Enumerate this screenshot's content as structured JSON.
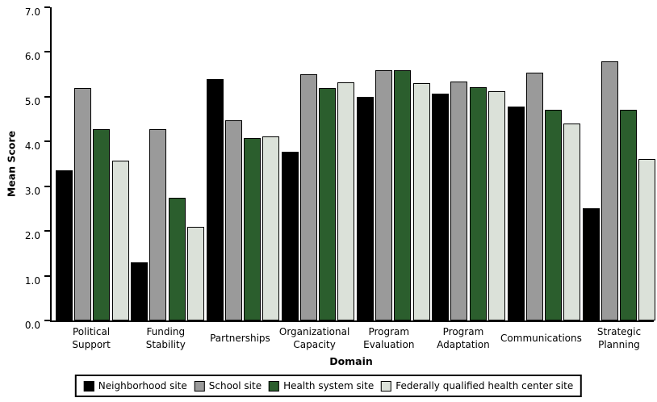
{
  "chart_data": {
    "type": "bar",
    "title": "",
    "xlabel": "Domain",
    "ylabel": "Mean Score",
    "ylim": [
      0,
      7
    ],
    "yticks": [
      "0.0",
      "1.0",
      "2.0",
      "3.0",
      "4.0",
      "5.0",
      "6.0",
      "7.0"
    ],
    "grid": false,
    "legend_position": "bottom",
    "categories": [
      "Political Support",
      "Funding Stability",
      "Partnerships",
      "Organizational Capacity",
      "Program Evaluation",
      "Program Adaptation",
      "Communications",
      "Strategic Planning"
    ],
    "series": [
      {
        "name": "Neighborhood site",
        "color": "#000000",
        "values": [
          3.35,
          1.3,
          5.4,
          3.77,
          5.0,
          5.07,
          4.78,
          2.5
        ]
      },
      {
        "name": "School site",
        "color": "#9A9A9A",
        "values": [
          5.2,
          4.28,
          4.47,
          5.5,
          5.6,
          5.34,
          5.53,
          5.8
        ]
      },
      {
        "name": "Health system site",
        "color": "#2B5E2D",
        "values": [
          4.28,
          2.75,
          4.08,
          5.2,
          5.6,
          5.21,
          4.7,
          4.7
        ]
      },
      {
        "name": "Federally qualified health center site",
        "color": "#DBE1D9",
        "values": [
          3.57,
          2.1,
          4.12,
          5.33,
          5.3,
          5.13,
          4.4,
          3.6
        ]
      }
    ],
    "axis_color": "#000000",
    "background_color": "#ffffff"
  }
}
